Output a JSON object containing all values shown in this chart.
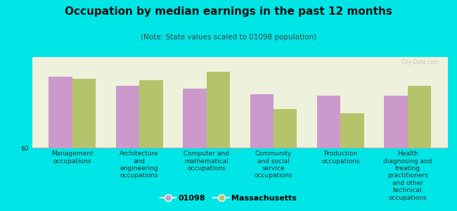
{
  "title": "Occupation by median earnings in the past 12 months",
  "subtitle": "(Note: State values scaled to 01098 population)",
  "categories": [
    "Management\noccupations",
    "Architecture\nand\nengineering\noccupations",
    "Computer and\nmathematical\noccupations",
    "Community\nand social\nservice\noccupations",
    "Production\noccupations",
    "Health\ndiagnosing and\ntreating\npractitioners\nand other\ntechnical\noccupations"
  ],
  "series_01098": [
    0.82,
    0.72,
    0.68,
    0.62,
    0.6,
    0.6
  ],
  "series_mass": [
    0.8,
    0.78,
    0.88,
    0.45,
    0.4,
    0.72
  ],
  "color_01098": "#cc99cc",
  "color_mass": "#b5c46a",
  "background_outer": "#00e5e5",
  "background_plot": "#eef2dc",
  "ylabel": "$0",
  "legend_01098": "01098",
  "legend_mass": "Massachusetts",
  "bar_width": 0.35,
  "title_fontsize": 11,
  "subtitle_fontsize": 7.5,
  "tick_fontsize": 6.5,
  "legend_fontsize": 8
}
